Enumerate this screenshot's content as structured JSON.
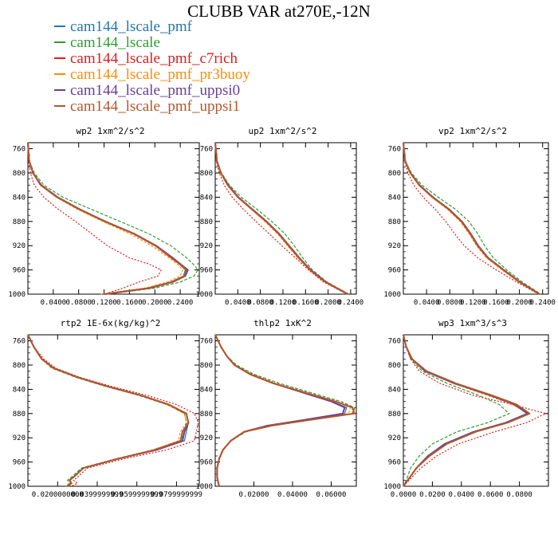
{
  "title": "CLUBB VAR at270E,-12N",
  "legend": [
    {
      "label": "cam144_lscale_pmf",
      "color": "#1f77b4"
    },
    {
      "label": "cam144_lscale",
      "color": "#2ca02c"
    },
    {
      "label": "cam144_lscale_pmf_c7rich",
      "color": "#e31a1c"
    },
    {
      "label": "cam144_lscale_pmf_pr3buoy",
      "color": "#ff8c00"
    },
    {
      "label": "cam144_lscale_pmf_uppsi0",
      "color": "#6a3d9a"
    },
    {
      "label": "cam144_lscale_pmf_uppsi1",
      "color": "#b5562a"
    }
  ],
  "chart_data": [
    {
      "type": "line",
      "title": "wp2   1xm^2/s^2",
      "ylim": [
        1000,
        750
      ],
      "yticks": [
        760,
        800,
        840,
        880,
        920,
        960,
        1000
      ],
      "xlim": [
        0,
        0.27
      ],
      "xticks": [
        0.04,
        0.08,
        0.12,
        0.16,
        0.2,
        0.24
      ],
      "xtick_labels": [
        "0.0400",
        "0.0800",
        "0.1200",
        "0.1600",
        "0.2000",
        "0.2400"
      ],
      "y": [
        750,
        780,
        800,
        820,
        840,
        860,
        880,
        900,
        920,
        940,
        950,
        960,
        970,
        980,
        990,
        1000
      ],
      "series": [
        {
          "name": "cam144_lscale_pmf",
          "values": [
            0.0,
            0.002,
            0.008,
            0.02,
            0.045,
            0.08,
            0.12,
            0.165,
            0.2,
            0.225,
            0.238,
            0.248,
            0.245,
            0.225,
            0.19,
            0.12
          ]
        },
        {
          "name": "cam144_lscale",
          "values": [
            0.0,
            0.002,
            0.01,
            0.025,
            0.055,
            0.1,
            0.145,
            0.19,
            0.225,
            0.25,
            0.26,
            0.268,
            0.262,
            0.24,
            0.2,
            0.125
          ]
        },
        {
          "name": "cam144_lscale_pmf_c7rich",
          "values": [
            0.0,
            0.001,
            0.004,
            0.01,
            0.025,
            0.048,
            0.075,
            0.1,
            0.125,
            0.16,
            0.19,
            0.21,
            0.205,
            0.175,
            0.15,
            0.12
          ]
        },
        {
          "name": "cam144_lscale_pmf_pr3buoy",
          "values": [
            0.0,
            0.002,
            0.008,
            0.02,
            0.045,
            0.078,
            0.118,
            0.16,
            0.195,
            0.222,
            0.235,
            0.244,
            0.24,
            0.22,
            0.185,
            0.115
          ]
        },
        {
          "name": "cam144_lscale_pmf_uppsi0",
          "values": [
            0.0,
            0.002,
            0.008,
            0.021,
            0.047,
            0.082,
            0.122,
            0.167,
            0.202,
            0.228,
            0.24,
            0.252,
            0.248,
            0.228,
            0.192,
            0.122
          ]
        },
        {
          "name": "cam144_lscale_pmf_uppsi1",
          "values": [
            0.0,
            0.002,
            0.008,
            0.02,
            0.046,
            0.081,
            0.121,
            0.166,
            0.201,
            0.226,
            0.239,
            0.25,
            0.247,
            0.226,
            0.19,
            0.12
          ]
        }
      ]
    },
    {
      "type": "line",
      "title": "up2   1xm^2/s^2",
      "ylim": [
        1000,
        750
      ],
      "yticks": [
        760,
        800,
        840,
        880,
        920,
        960,
        1000
      ],
      "xlim": [
        0,
        0.25
      ],
      "xticks": [
        0.04,
        0.08,
        0.12,
        0.16,
        0.2,
        0.24
      ],
      "xtick_labels": [
        "0.0400",
        "0.0800",
        "0.1200",
        "0.1600",
        "0.2000",
        "0.2400"
      ],
      "y": [
        750,
        780,
        800,
        820,
        840,
        860,
        880,
        900,
        920,
        940,
        960,
        980,
        1000
      ],
      "series": [
        {
          "name": "cam144_lscale_pmf",
          "values": [
            0.0,
            0.003,
            0.01,
            0.022,
            0.04,
            0.065,
            0.09,
            0.112,
            0.13,
            0.148,
            0.168,
            0.195,
            0.235
          ]
        },
        {
          "name": "cam144_lscale",
          "values": [
            0.0,
            0.003,
            0.011,
            0.025,
            0.046,
            0.074,
            0.1,
            0.123,
            0.14,
            0.155,
            0.172,
            0.198,
            0.237
          ]
        },
        {
          "name": "cam144_lscale_pmf_c7rich",
          "values": [
            0.0,
            0.002,
            0.007,
            0.016,
            0.03,
            0.05,
            0.072,
            0.095,
            0.118,
            0.142,
            0.165,
            0.192,
            0.233
          ]
        },
        {
          "name": "cam144_lscale_pmf_pr3buoy",
          "values": [
            0.0,
            0.003,
            0.01,
            0.022,
            0.04,
            0.064,
            0.088,
            0.11,
            0.128,
            0.146,
            0.167,
            0.194,
            0.234
          ]
        },
        {
          "name": "cam144_lscale_pmf_uppsi0",
          "values": [
            0.0,
            0.003,
            0.01,
            0.023,
            0.041,
            0.066,
            0.091,
            0.113,
            0.131,
            0.149,
            0.169,
            0.196,
            0.235
          ]
        },
        {
          "name": "cam144_lscale_pmf_uppsi1",
          "values": [
            0.0,
            0.003,
            0.01,
            0.022,
            0.04,
            0.065,
            0.09,
            0.112,
            0.13,
            0.148,
            0.168,
            0.195,
            0.235
          ]
        }
      ]
    },
    {
      "type": "line",
      "title": "vp2   1xm^2/s^2",
      "ylim": [
        1000,
        750
      ],
      "yticks": [
        760,
        800,
        840,
        880,
        920,
        960,
        1000
      ],
      "xlim": [
        0,
        0.25
      ],
      "xticks": [
        0.04,
        0.08,
        0.12,
        0.16,
        0.2,
        0.24
      ],
      "xtick_labels": [
        "0.0400",
        "0.0800",
        "0.1200",
        "0.1600",
        "0.2000",
        "0.2400"
      ],
      "y": [
        750,
        780,
        800,
        820,
        840,
        860,
        880,
        900,
        920,
        940,
        960,
        980,
        1000
      ],
      "series": [
        {
          "name": "cam144_lscale_pmf",
          "values": [
            0.0,
            0.003,
            0.012,
            0.027,
            0.05,
            0.078,
            0.1,
            0.115,
            0.128,
            0.145,
            0.172,
            0.2,
            0.235
          ]
        },
        {
          "name": "cam144_lscale",
          "values": [
            0.0,
            0.003,
            0.014,
            0.032,
            0.06,
            0.09,
            0.113,
            0.128,
            0.14,
            0.155,
            0.178,
            0.205,
            0.237
          ]
        },
        {
          "name": "cam144_lscale_pmf_c7rich",
          "values": [
            0.0,
            0.002,
            0.008,
            0.018,
            0.034,
            0.055,
            0.073,
            0.088,
            0.105,
            0.128,
            0.16,
            0.195,
            0.233
          ]
        },
        {
          "name": "cam144_lscale_pmf_pr3buoy",
          "values": [
            0.0,
            0.003,
            0.012,
            0.027,
            0.049,
            0.076,
            0.098,
            0.113,
            0.126,
            0.143,
            0.17,
            0.199,
            0.234
          ]
        },
        {
          "name": "cam144_lscale_pmf_uppsi0",
          "values": [
            0.0,
            0.003,
            0.012,
            0.028,
            0.051,
            0.079,
            0.101,
            0.116,
            0.129,
            0.146,
            0.173,
            0.201,
            0.235
          ]
        },
        {
          "name": "cam144_lscale_pmf_uppsi1",
          "values": [
            0.0,
            0.003,
            0.012,
            0.027,
            0.05,
            0.078,
            0.1,
            0.115,
            0.128,
            0.145,
            0.172,
            0.2,
            0.235
          ]
        }
      ]
    },
    {
      "type": "line",
      "title": "rtp2   1E-6x(kg/kg)^2",
      "ylim": [
        1000,
        750
      ],
      "yticks": [
        760,
        800,
        840,
        880,
        920,
        960,
        1000
      ],
      "xlim": [
        0.005,
        0.0915
      ],
      "xticks": [
        0.02,
        0.04,
        0.06,
        0.08
      ],
      "xtick_labels": [
        "0.0200000000",
        "0.0399999999",
        "0.0599999999",
        "0.0799999999"
      ],
      "y": [
        750,
        770,
        790,
        805,
        820,
        835,
        850,
        865,
        880,
        895,
        910,
        925,
        940,
        955,
        970,
        985,
        990,
        995,
        1000
      ],
      "series": [
        {
          "name": "cam144_lscale_pmf",
          "values": [
            0.005,
            0.008,
            0.012,
            0.018,
            0.03,
            0.045,
            0.062,
            0.076,
            0.085,
            0.086,
            0.085,
            0.084,
            0.07,
            0.05,
            0.033,
            0.028,
            0.026,
            0.027,
            0.025
          ]
        },
        {
          "name": "cam144_lscale",
          "values": [
            0.005,
            0.008,
            0.012,
            0.017,
            0.029,
            0.044,
            0.061,
            0.075,
            0.084,
            0.085,
            0.084,
            0.082,
            0.068,
            0.049,
            0.032,
            0.027,
            0.025,
            0.026,
            0.024
          ]
        },
        {
          "name": "cam144_lscale_pmf_c7rich",
          "values": [
            0.005,
            0.008,
            0.013,
            0.019,
            0.031,
            0.047,
            0.065,
            0.08,
            0.089,
            0.091,
            0.09,
            0.089,
            0.075,
            0.053,
            0.035,
            0.03,
            0.028,
            0.03,
            0.027
          ]
        },
        {
          "name": "cam144_lscale_pmf_pr3buoy",
          "values": [
            0.005,
            0.008,
            0.012,
            0.018,
            0.03,
            0.045,
            0.062,
            0.075,
            0.084,
            0.085,
            0.082,
            0.081,
            0.068,
            0.05,
            0.033,
            0.028,
            0.026,
            0.027,
            0.024
          ]
        },
        {
          "name": "cam144_lscale_pmf_uppsi0",
          "values": [
            0.005,
            0.008,
            0.012,
            0.018,
            0.03,
            0.045,
            0.062,
            0.076,
            0.085,
            0.086,
            0.084,
            0.083,
            0.07,
            0.05,
            0.033,
            0.028,
            0.026,
            0.027,
            0.025
          ]
        },
        {
          "name": "cam144_lscale_pmf_uppsi1",
          "values": [
            0.005,
            0.008,
            0.012,
            0.018,
            0.03,
            0.045,
            0.062,
            0.076,
            0.085,
            0.086,
            0.083,
            0.082,
            0.069,
            0.05,
            0.033,
            0.028,
            0.026,
            0.027,
            0.025
          ]
        }
      ]
    },
    {
      "type": "line",
      "title": "thlp2   1xK^2",
      "ylim": [
        1000,
        750
      ],
      "yticks": [
        760,
        800,
        840,
        880,
        920,
        960,
        1000
      ],
      "xlim": [
        0,
        0.073
      ],
      "xticks": [
        0.02,
        0.04,
        0.06
      ],
      "xtick_labels": [
        "0.02000",
        "0.04000",
        "0.06000"
      ],
      "y": [
        750,
        770,
        785,
        800,
        815,
        830,
        845,
        860,
        870,
        880,
        890,
        900,
        910,
        925,
        940,
        955,
        970,
        985,
        1000
      ],
      "series": [
        {
          "name": "cam144_lscale_pmf",
          "values": [
            0.0,
            0.003,
            0.006,
            0.01,
            0.018,
            0.03,
            0.045,
            0.06,
            0.068,
            0.067,
            0.048,
            0.028,
            0.015,
            0.008,
            0.004,
            0.002,
            0.001,
            0.001,
            0.002
          ]
        },
        {
          "name": "cam144_lscale",
          "values": [
            0.0,
            0.003,
            0.006,
            0.011,
            0.02,
            0.033,
            0.049,
            0.065,
            0.072,
            0.072,
            0.051,
            0.03,
            0.016,
            0.008,
            0.004,
            0.002,
            0.001,
            0.001,
            0.002
          ]
        },
        {
          "name": "cam144_lscale_pmf_c7rich",
          "values": [
            0.0,
            0.003,
            0.006,
            0.01,
            0.019,
            0.031,
            0.047,
            0.063,
            0.071,
            0.071,
            0.05,
            0.029,
            0.015,
            0.008,
            0.004,
            0.002,
            0.001,
            0.001,
            0.002
          ]
        },
        {
          "name": "cam144_lscale_pmf_pr3buoy",
          "values": [
            0.0,
            0.003,
            0.006,
            0.01,
            0.018,
            0.03,
            0.046,
            0.062,
            0.07,
            0.069,
            0.049,
            0.028,
            0.015,
            0.008,
            0.004,
            0.002,
            0.001,
            0.001,
            0.002
          ]
        },
        {
          "name": "cam144_lscale_pmf_uppsi0",
          "values": [
            0.0,
            0.003,
            0.006,
            0.01,
            0.018,
            0.03,
            0.045,
            0.06,
            0.067,
            0.066,
            0.047,
            0.027,
            0.015,
            0.008,
            0.004,
            0.002,
            0.001,
            0.001,
            0.002
          ]
        },
        {
          "name": "cam144_lscale_pmf_uppsi1",
          "values": [
            0.0,
            0.003,
            0.006,
            0.01,
            0.018,
            0.03,
            0.046,
            0.062,
            0.071,
            0.072,
            0.05,
            0.029,
            0.015,
            0.008,
            0.004,
            0.002,
            0.001,
            0.001,
            0.002
          ]
        }
      ]
    },
    {
      "type": "line",
      "title": "wp3   1xm^3/s^3",
      "ylim": [
        1000,
        750
      ],
      "yticks": [
        760,
        800,
        840,
        880,
        920,
        960,
        1000
      ],
      "xlim": [
        0,
        0.1
      ],
      "xticks": [
        0.0,
        0.02,
        0.04,
        0.06,
        0.08
      ],
      "xtick_labels": [
        "0.0000",
        "0.0200",
        "0.0400",
        "0.0600",
        "0.0800"
      ],
      "y": [
        750,
        770,
        790,
        810,
        830,
        850,
        865,
        880,
        895,
        910,
        930,
        950,
        970,
        990,
        1000
      ],
      "series": [
        {
          "name": "cam144_lscale_pmf",
          "values": [
            0.0,
            0.002,
            0.006,
            0.015,
            0.035,
            0.06,
            0.076,
            0.085,
            0.07,
            0.048,
            0.028,
            0.017,
            0.009,
            0.003,
            0.0
          ]
        },
        {
          "name": "cam144_lscale",
          "values": [
            0.0,
            0.002,
            0.005,
            0.013,
            0.03,
            0.052,
            0.066,
            0.073,
            0.058,
            0.037,
            0.02,
            0.011,
            0.005,
            0.002,
            0.0
          ]
        },
        {
          "name": "cam144_lscale_pmf_c7rich",
          "values": [
            0.0,
            0.002,
            0.005,
            0.011,
            0.025,
            0.048,
            0.075,
            0.098,
            0.085,
            0.063,
            0.038,
            0.023,
            0.012,
            0.004,
            0.0
          ]
        },
        {
          "name": "cam144_lscale_pmf_pr3buoy",
          "values": [
            0.0,
            0.002,
            0.006,
            0.015,
            0.034,
            0.058,
            0.075,
            0.086,
            0.071,
            0.049,
            0.029,
            0.018,
            0.009,
            0.003,
            0.0
          ]
        },
        {
          "name": "cam144_lscale_pmf_uppsi0",
          "values": [
            0.0,
            0.002,
            0.006,
            0.015,
            0.035,
            0.06,
            0.077,
            0.086,
            0.071,
            0.049,
            0.029,
            0.017,
            0.009,
            0.003,
            0.0
          ]
        },
        {
          "name": "cam144_lscale_pmf_uppsi1",
          "values": [
            0.0,
            0.002,
            0.006,
            0.016,
            0.036,
            0.061,
            0.078,
            0.087,
            0.072,
            0.05,
            0.03,
            0.018,
            0.009,
            0.003,
            0.0
          ]
        }
      ]
    }
  ]
}
